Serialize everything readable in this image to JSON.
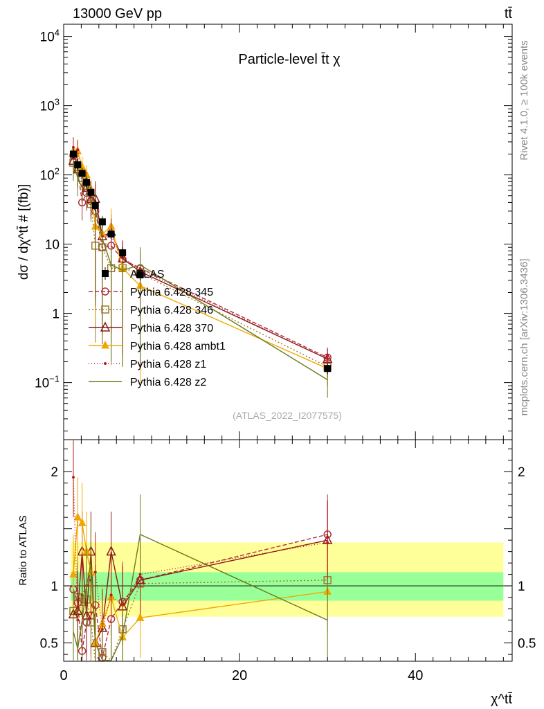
{
  "header": {
    "energy_label": "13000 GeV pp",
    "process_label": "tt̄"
  },
  "side_labels": {
    "rivet": "Rivet 4.1.0, ≥ 100k events",
    "mcplots": "mcplots.cern.ch [arXiv:1306.3436]"
  },
  "chart_data": {
    "type": "line",
    "title": "Particle-level t̄t χ",
    "analysis_tag": "(ATLAS_2022_I2077575)",
    "xlabel": "χ^tt̄",
    "ylabel_main": "dσ / dχ^tt̄ # [(fb)]",
    "ylabel_ratio": "Ratio to ATLAS",
    "xlim": [
      0,
      51
    ],
    "ylim_main": [
      0.015,
      15000
    ],
    "ylim_ratio": [
      0.34,
      2.28
    ],
    "x_ticks": [
      0,
      20,
      40
    ],
    "main_y_ticks": [
      {
        "v": 10000,
        "base": "10",
        "exp": "4"
      },
      {
        "v": 1000,
        "base": "10",
        "exp": "3"
      },
      {
        "v": 100,
        "base": "10",
        "exp": "2"
      },
      {
        "v": 10,
        "base": "10",
        "exp": ""
      },
      {
        "v": 1,
        "base": "1",
        "exp": ""
      },
      {
        "v": 0.1,
        "base": "10",
        "exp": "−1"
      }
    ],
    "ratio_y_ticks": [
      {
        "v": 2,
        "label": "2"
      },
      {
        "v": 1,
        "label": "1"
      },
      {
        "v": 0.5,
        "label": "0.5"
      }
    ],
    "x": [
      1.1,
      1.6,
      2.1,
      2.6,
      3.1,
      3.6,
      4.4,
      5.4,
      6.7,
      8.7,
      30
    ],
    "data": {
      "name": "ATLAS",
      "values": [
        200,
        140,
        105,
        78,
        56,
        36,
        21,
        14,
        7.5,
        3.6,
        0.16
      ],
      "band_inner": [
        0.87,
        1.12
      ],
      "band_outer": [
        0.73,
        1.38
      ]
    },
    "series": [
      {
        "name": "Pythia 6.428 345",
        "color": "#b03040",
        "marker": "circle-open",
        "dash": "6,3",
        "values": [
          190,
          120,
          40,
          55,
          42,
          30,
          9,
          9.5,
          6,
          4.5,
          0.23
        ],
        "ratio": [
          0.97,
          0.85,
          0.43,
          0.68,
          0.74,
          0.83,
          0.37,
          0.71,
          0.86,
          1.05,
          1.45
        ]
      },
      {
        "name": "Pythia 6.428 346",
        "color": "#9a7a30",
        "marker": "square-open",
        "dash": "2,3",
        "values": [
          150,
          130,
          90,
          70,
          38,
          9.5,
          9,
          4.5,
          4.5,
          3.8,
          0.17
        ],
        "ratio": [
          0.78,
          0.9,
          0.86,
          0.88,
          0.68,
          0.27,
          0.42,
          0.32,
          0.62,
          1.02,
          1.05
        ]
      },
      {
        "name": "Pythia 6.428 370",
        "color": "#8b1a1a",
        "marker": "triangle-open",
        "dash": "",
        "values": [
          160,
          120,
          110,
          65,
          45,
          45,
          13,
          15,
          6.2,
          4,
          0.22
        ],
        "ratio": [
          0.75,
          0.78,
          1.3,
          0.74,
          1.3,
          0.5,
          0.63,
          1.3,
          0.82,
          1.05,
          1.4
        ]
      },
      {
        "name": "Pythia 6.428 ambt1",
        "color": "#f0a800",
        "marker": "triangle-filled",
        "dash": "",
        "values": [
          220,
          220,
          130,
          100,
          62,
          18,
          14,
          18,
          4.5,
          2.5,
          0.16
        ],
        "ratio": [
          1.1,
          1.6,
          1.55,
          1.3,
          1.12,
          0.5,
          0.67,
          0.9,
          0.55,
          0.72,
          0.95
        ]
      },
      {
        "name": "Pythia 6.428 z1",
        "color": "#c01818",
        "marker": "dot",
        "dash": "1,3",
        "values": [
          250,
          230,
          70,
          80,
          58,
          40,
          13,
          13,
          6.3,
          4.3,
          0.22
        ],
        "ratio": [
          1.95,
          0.7,
          0.92,
          1.0,
          1.05,
          1.12,
          0.62,
          0.92,
          0.83,
          1.1,
          1.38
        ]
      },
      {
        "name": "Pythia 6.428 z2",
        "color": "#6b7a18",
        "marker": "line",
        "dash": "",
        "values": [
          150,
          90,
          65,
          70,
          52,
          32,
          12,
          5,
          4.2,
          5,
          0.11
        ],
        "ratio": [
          0.6,
          0.45,
          0.7,
          1.0,
          1.2,
          0.5,
          0.35,
          0.3,
          0.56,
          1.45,
          0.7
        ]
      }
    ]
  }
}
